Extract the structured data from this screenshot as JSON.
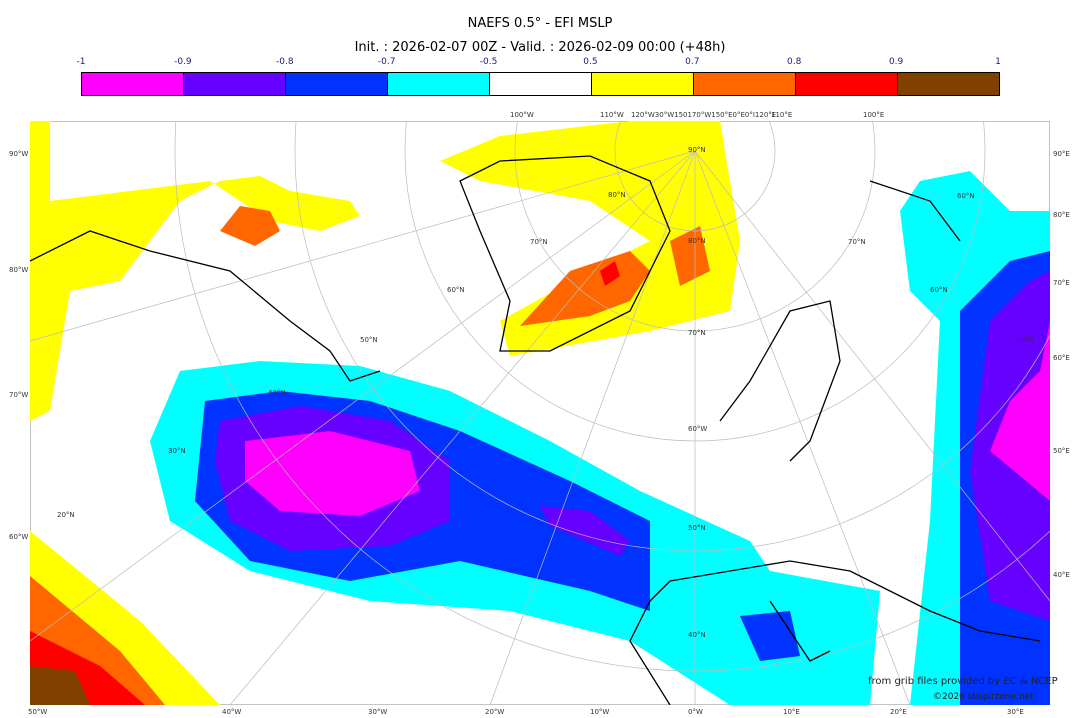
{
  "title": "NAEFS 0.5° - EFI MSLP",
  "subtitle": "Init. : 2026-02-07 00Z - Valid. : 2026-02-09 00:00 (+48h)",
  "colorbar": {
    "ticks": [
      "-1",
      "-0.9",
      "-0.8",
      "-0.7",
      "-0.5",
      "0.5",
      "0.7",
      "0.8",
      "0.9",
      "1"
    ],
    "colors": [
      "#ff00ff",
      "#6600ff",
      "#0033ff",
      "#00ffff",
      "#ffffff",
      "#ffff00",
      "#ff6600",
      "#ff0000",
      "#804000"
    ]
  },
  "axes": {
    "left": [
      "90°W",
      "80°W",
      "70°W",
      "60°W"
    ],
    "right": [
      "90°E",
      "80°E",
      "70°E",
      "60°E",
      "50°E",
      "40°E"
    ],
    "bottom": [
      "50°W",
      "40°W",
      "30°W",
      "20°W",
      "10°W",
      "0°W",
      "10°E",
      "20°E",
      "30°E"
    ],
    "top": [
      "100°W",
      "110°W",
      "120°W30°W150170°W150°E0°E0°I120°E",
      "110°E",
      "100°E"
    ],
    "grid": [
      "90°N",
      "80°N",
      "80°N",
      "70°N",
      "70°N",
      "70°N",
      "60°N",
      "60°N",
      "60°N",
      "50°N",
      "50°N",
      "50°N",
      "40°N",
      "40°N",
      "30°N",
      "20°N",
      "60°W"
    ]
  },
  "credits": {
    "source": "from grib files provided by EC & NCEP",
    "copyright": "©2026 sbspirzone.net"
  }
}
